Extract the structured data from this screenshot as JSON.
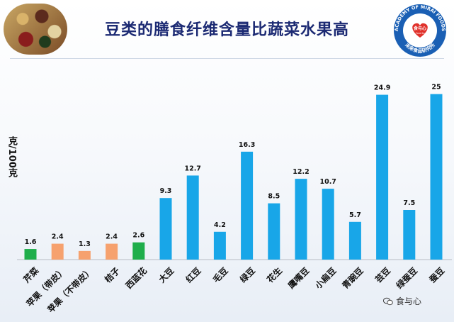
{
  "header": {
    "title": "豆类的膳食纤维含量比蔬菜水果高",
    "logo_ring_text": "ACADEMY OF MIRAI FOODS",
    "logo_center_text": "食与心",
    "logo_center_sub": "From Food to Mind",
    "logo_bottom_text": "未来食品研究所"
  },
  "watermark": {
    "text": "食与心",
    "icon": "wechat-bubbles-icon"
  },
  "chart_data": {
    "type": "bar",
    "title": "豆类的膳食纤维含量比蔬菜水果高",
    "xlabel": "",
    "ylabel": "克/100克",
    "ylim": [
      0,
      27
    ],
    "grid": false,
    "legend": "none",
    "categories": [
      "芹菜",
      "苹果（带皮）",
      "苹果（不带皮）",
      "桔子",
      "西蓝花",
      "大豆",
      "红豆",
      "毛豆",
      "绿豆",
      "花生",
      "鹰嘴豆",
      "小扁豆",
      "青豌豆",
      "芸豆",
      "绿蚕豆",
      "蚕豆"
    ],
    "values": [
      1.6,
      2.4,
      1.3,
      2.4,
      2.6,
      9.3,
      12.7,
      4.2,
      16.3,
      8.5,
      12.2,
      10.7,
      5.7,
      24.9,
      7.5,
      25
    ],
    "value_labels": [
      "1.6",
      "2.4",
      "1.3",
      "2.4",
      "2.6",
      "9.3",
      "12.7",
      "4.2",
      "16.3",
      "8.5",
      "12.2",
      "10.7",
      "5.7",
      "24.9",
      "7.5",
      "25"
    ],
    "group_colors": {
      "vegetable": "#1fae4b",
      "fruit": "#f6a16e",
      "legume": "#18a6e8"
    },
    "bar_groups": [
      "vegetable",
      "fruit",
      "fruit",
      "fruit",
      "vegetable",
      "legume",
      "legume",
      "legume",
      "legume",
      "legume",
      "legume",
      "legume",
      "legume",
      "legume",
      "legume",
      "legume"
    ]
  }
}
